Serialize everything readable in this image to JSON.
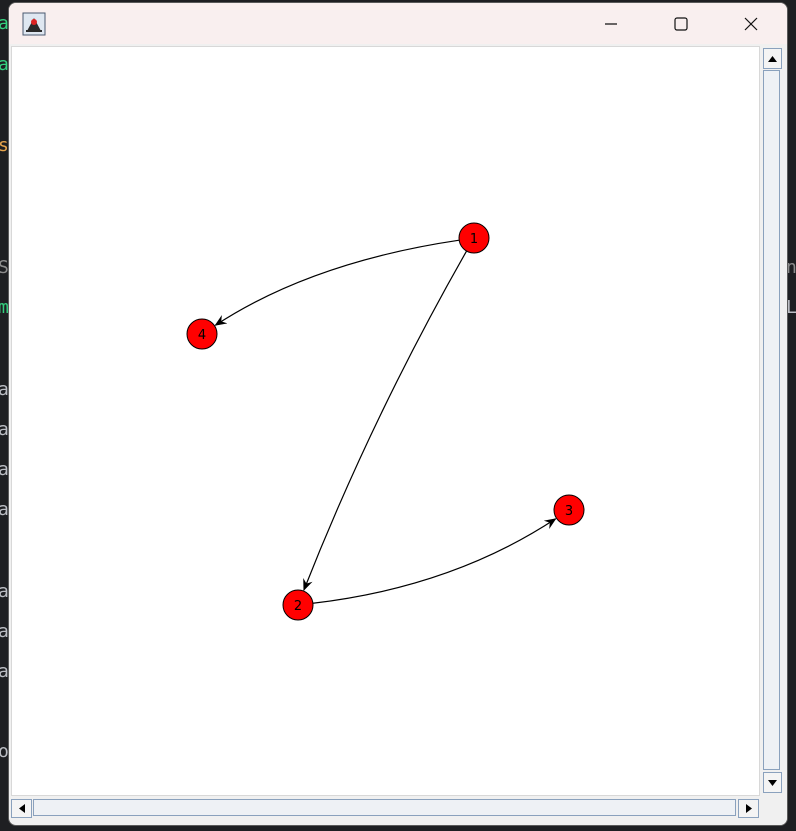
{
  "window": {
    "title": "",
    "icon": "java-duke-icon",
    "controls": [
      "minimize-icon",
      "maximize-icon",
      "close-icon"
    ]
  },
  "background": {
    "left_chars": [
      {
        "ch": "a",
        "color": "#35d07f"
      },
      {
        "ch": "a",
        "color": "#35d07f"
      },
      {
        "ch": "s",
        "color": "#e6a44c"
      },
      {
        "ch": "S",
        "color": "#8c8c8c"
      },
      {
        "ch": "m",
        "color": "#35d07f"
      },
      {
        "ch": "a",
        "color": "#bcbec4"
      },
      {
        "ch": "a",
        "color": "#bcbec4"
      },
      {
        "ch": "a",
        "color": "#bcbec4"
      },
      {
        "ch": "a",
        "color": "#bcbec4"
      },
      {
        "ch": "a",
        "color": "#bcbec4"
      },
      {
        "ch": "a",
        "color": "#bcbec4"
      },
      {
        "ch": "a",
        "color": "#bcbec4"
      },
      {
        "ch": "o",
        "color": "#bcbec4"
      }
    ],
    "right_chars": [
      {
        "ch": "n",
        "color": "#8c8c8c"
      },
      {
        "ch": "L",
        "color": "#bcbec4"
      }
    ]
  },
  "graph": {
    "node_color": "#ff0000",
    "edge_color": "#000000",
    "nodes": [
      {
        "id": "1",
        "label": "1"
      },
      {
        "id": "2",
        "label": "2"
      },
      {
        "id": "3",
        "label": "3"
      },
      {
        "id": "4",
        "label": "4"
      }
    ],
    "edges": [
      {
        "from": "1",
        "to": "4"
      },
      {
        "from": "1",
        "to": "2"
      },
      {
        "from": "2",
        "to": "3"
      }
    ]
  },
  "scrollbars": {
    "vertical": [
      "scroll-up-arrow-icon",
      "scroll-down-arrow-icon"
    ],
    "horizontal": [
      "scroll-left-arrow-icon",
      "scroll-right-arrow-icon"
    ]
  }
}
